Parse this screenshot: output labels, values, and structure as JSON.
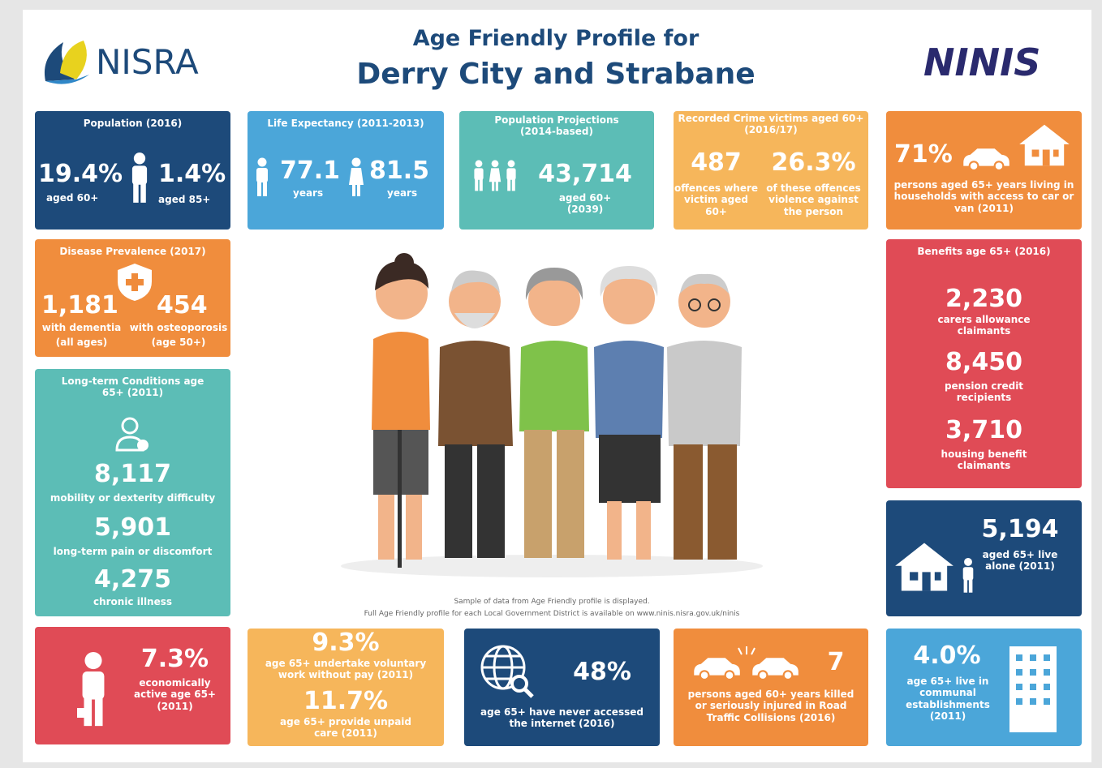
{
  "header": {
    "left_logo": "NISRA",
    "title": "Age Friendly Profile for",
    "subtitle": "Derry City and Strabane",
    "right_logo": "NINIS"
  },
  "tiles": {
    "population": {
      "title": "Population (2016)",
      "stats": [
        {
          "value": "19.4%",
          "label": "aged 60+"
        },
        {
          "value": "1.4%",
          "label": "aged 85+"
        }
      ]
    },
    "life_expectancy": {
      "title": "Life Expectancy (2011-2013)",
      "stats": [
        {
          "value": "77.1",
          "label": "years"
        },
        {
          "value": "81.5",
          "label": "years"
        }
      ]
    },
    "projections": {
      "title": "Population Projections (2014-based)",
      "stats": [
        {
          "value": "43,714",
          "label": "aged 60+ (2039)"
        }
      ]
    },
    "crime": {
      "title": "Recorded Crime victims aged 60+ (2016/17)",
      "stats": [
        {
          "value": "487",
          "label": "offences where victim aged 60+"
        },
        {
          "value": "26.3%",
          "label": "of these offences violence against the person"
        }
      ]
    },
    "car": {
      "stats": [
        {
          "value": "71%",
          "label": "persons aged 65+ years living in households with access to car or van (2011)"
        }
      ]
    },
    "disease": {
      "title": "Disease Prevalence (2017)",
      "stats": [
        {
          "value": "1,181",
          "label": "with dementia",
          "note": "(all ages)"
        },
        {
          "value": "454",
          "label": "with osteoporosis",
          "note": "(age 50+)"
        }
      ]
    },
    "conditions": {
      "title": "Long-term Conditions age 65+ (2011)",
      "stats": [
        {
          "value": "8,117",
          "label": "mobility or dexterity difficulty"
        },
        {
          "value": "5,901",
          "label": "long-term pain or discomfort"
        },
        {
          "value": "4,275",
          "label": "chronic illness"
        }
      ]
    },
    "economic": {
      "stats": [
        {
          "value": "7.3%",
          "label": "economically active age 65+ (2011)"
        }
      ]
    },
    "carers": {
      "stats": [
        {
          "value": "9.3%",
          "label": "age 65+ undertake voluntary work without pay (2011)"
        },
        {
          "value": "11.7%",
          "label": "age 65+ provide unpaid care (2011)"
        }
      ]
    },
    "internet": {
      "stats": [
        {
          "value": "48%",
          "label": "age 65+ have never accessed the internet (2016)"
        }
      ]
    },
    "collisions": {
      "stats": [
        {
          "value": "7",
          "label": "persons aged 60+ years killed or seriously injured in Road Traffic Collisions (2016)"
        }
      ]
    },
    "communal": {
      "stats": [
        {
          "value": "4.0%",
          "label": "age 65+ live in communal establishments (2011)"
        }
      ]
    },
    "benefits": {
      "title": "Benefits age 65+ (2016)",
      "stats": [
        {
          "value": "2,230",
          "label": "carers allowance claimants"
        },
        {
          "value": "8,450",
          "label": "pension credit recipients"
        },
        {
          "value": "3,710",
          "label": "housing benefit claimants"
        }
      ]
    },
    "alone": {
      "stats": [
        {
          "value": "5,194",
          "label": "aged 65+ live alone (2011)"
        }
      ]
    }
  },
  "footnote": {
    "line1": "Sample of data from Age Friendly profile is displayed.",
    "line2": "Full Age Friendly profile for each Local Government District is available on www.ninis.nisra.gov.uk/ninis"
  }
}
